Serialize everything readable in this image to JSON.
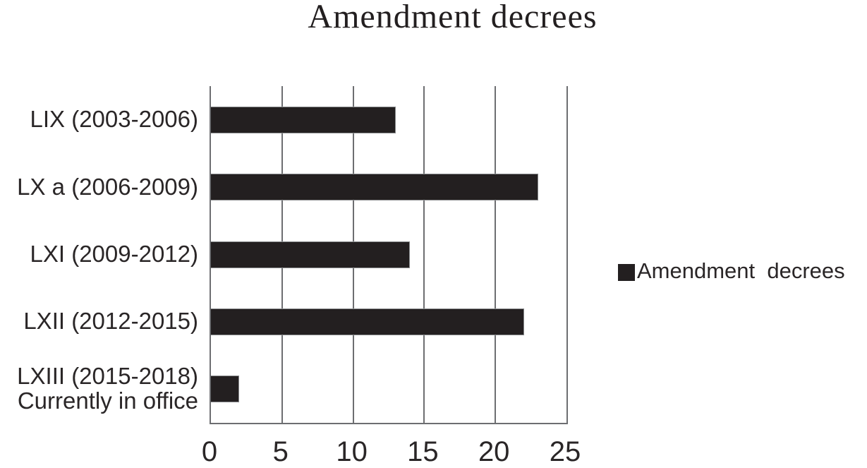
{
  "title": "Amendment decrees",
  "legend": {
    "label": "Amendment  decrees",
    "swatch_color": "#231f20"
  },
  "colors": {
    "bar": "#231f20",
    "grid": "#6d6e71",
    "text": "#231f20",
    "background": "#ffffff"
  },
  "chart_data": {
    "type": "bar",
    "orientation": "horizontal",
    "title": "Amendment decrees",
    "categories": [
      "LIX (2003-2006)",
      "LX a (2006-2009)",
      "LXI (2009-2012)",
      "LXII (2012-2015)",
      "LXIII (2015-2018)\nCurrently in office"
    ],
    "series": [
      {
        "name": "Amendment decrees",
        "values": [
          13,
          23,
          14,
          22,
          2
        ]
      }
    ],
    "xlabel": "",
    "ylabel": "",
    "xlim": [
      0,
      25
    ],
    "x_ticks": [
      0,
      5,
      10,
      15,
      20,
      25
    ],
    "grid": "vertical-only",
    "legend_position": "right",
    "bar_color": "#231f20"
  }
}
